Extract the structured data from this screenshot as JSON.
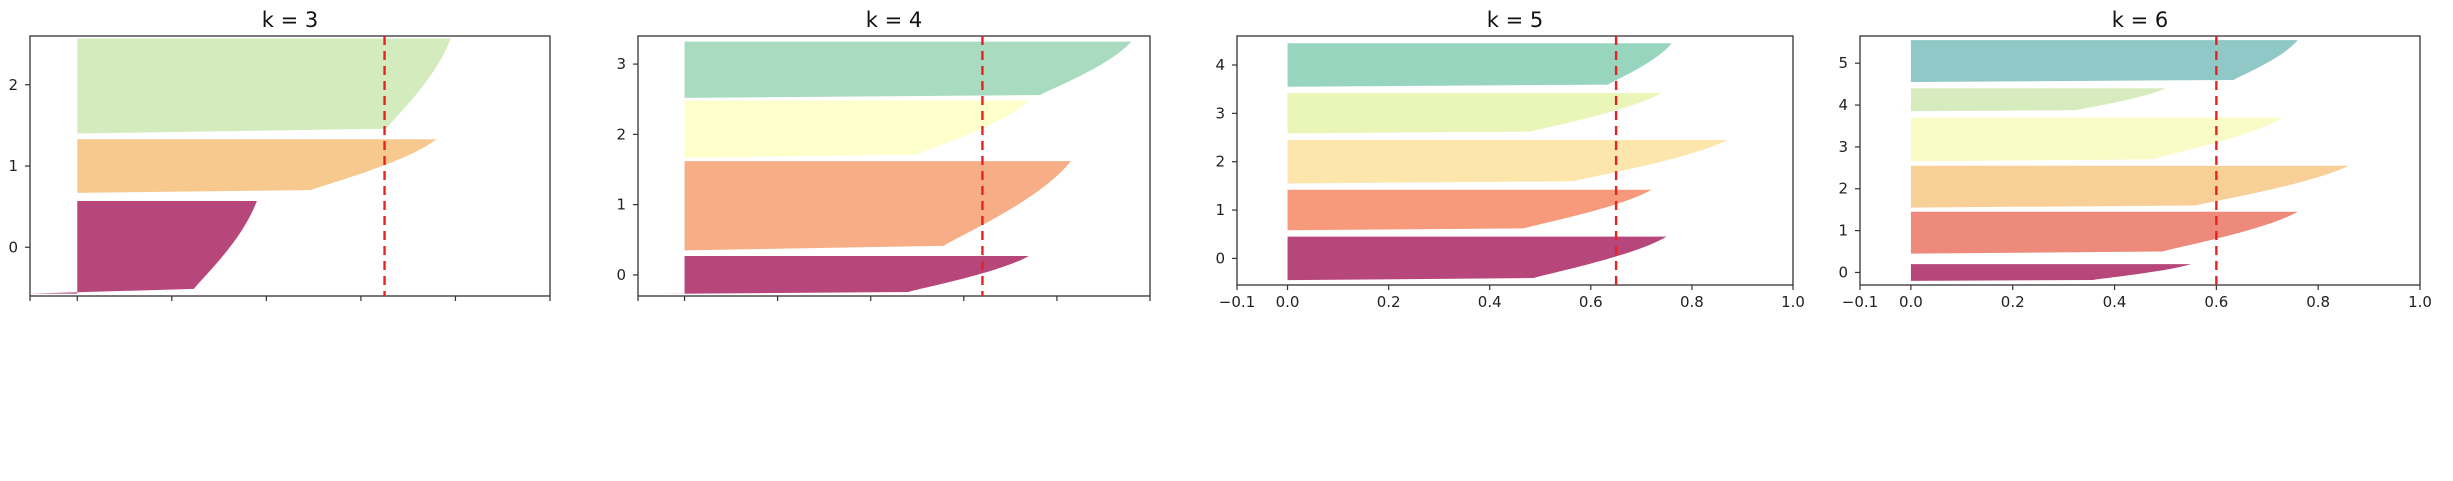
{
  "chart_data": [
    {
      "type": "silhouette",
      "title": "k = 3",
      "xlim": [
        -0.1,
        1.0
      ],
      "ylim": [
        -0.6,
        2.6
      ],
      "x_ticks_labeled": false,
      "yticks": [
        0,
        1,
        2
      ],
      "silhouette_average": 0.65,
      "clusters": [
        {
          "label": "0",
          "color": "#b7477a",
          "y_from": -0.57,
          "y_to": 0.57,
          "min_coef": -0.1,
          "max_coef": 0.38
        },
        {
          "label": "1",
          "color": "#f8c98e",
          "y_from": 0.67,
          "y_to": 1.33,
          "min_coef": 0.0,
          "max_coef": 0.76
        },
        {
          "label": "2",
          "color": "#d3ebbd",
          "y_from": 1.4,
          "y_to": 2.57,
          "min_coef": 0.4,
          "max_coef": 0.79
        }
      ]
    },
    {
      "type": "silhouette",
      "title": "k = 4",
      "xlim": [
        -0.1,
        1.0
      ],
      "ylim": [
        -0.3,
        3.4
      ],
      "x_ticks_labeled": false,
      "yticks": [
        0,
        1,
        2,
        3
      ],
      "silhouette_average": 0.64,
      "clusters": [
        {
          "label": "0",
          "color": "#b7477a",
          "y_from": -0.27,
          "y_to": 0.27,
          "min_coef": -0.05,
          "max_coef": 0.74
        },
        {
          "label": "1",
          "color": "#f7ae86",
          "y_from": 0.35,
          "y_to": 1.62,
          "min_coef": 0.05,
          "max_coef": 0.83
        },
        {
          "label": "2",
          "color": "#ffffcc",
          "y_from": 1.67,
          "y_to": 2.48,
          "min_coef": 0.05,
          "max_coef": 0.74
        },
        {
          "label": "3",
          "color": "#a8dbbf",
          "y_from": 2.52,
          "y_to": 3.32,
          "min_coef": 0.4,
          "max_coef": 0.96
        }
      ]
    },
    {
      "type": "silhouette",
      "title": "k = 5",
      "xlim": [
        -0.1,
        1.0
      ],
      "ylim": [
        -0.55,
        4.6
      ],
      "xticks": [
        -0.1,
        0.0,
        0.2,
        0.4,
        0.6,
        0.8,
        1.0
      ],
      "xtick_labels": [
        "−0.1",
        "0.0",
        "0.2",
        "0.4",
        "0.6",
        "0.8",
        "1.0"
      ],
      "yticks": [
        0,
        1,
        2,
        3,
        4
      ],
      "silhouette_average": 0.65,
      "clusters": [
        {
          "label": "0",
          "color": "#b7477a",
          "y_from": -0.45,
          "y_to": 0.45,
          "min_coef": 0.0,
          "max_coef": 0.75
        },
        {
          "label": "1",
          "color": "#f69a7b",
          "y_from": 0.58,
          "y_to": 1.42,
          "min_coef": -0.03,
          "max_coef": 0.72
        },
        {
          "label": "2",
          "color": "#fde6ac",
          "y_from": 1.55,
          "y_to": 2.45,
          "min_coef": 0.0,
          "max_coef": 0.87
        },
        {
          "label": "3",
          "color": "#eaf5b8",
          "y_from": 2.58,
          "y_to": 3.42,
          "min_coef": -0.05,
          "max_coef": 0.74
        },
        {
          "label": "4",
          "color": "#97d5bf",
          "y_from": 3.55,
          "y_to": 4.45,
          "min_coef": 0.4,
          "max_coef": 0.76
        }
      ]
    },
    {
      "type": "silhouette",
      "title": "k = 6",
      "xlim": [
        -0.1,
        1.0
      ],
      "ylim": [
        -0.3,
        5.65
      ],
      "xticks": [
        -0.1,
        0.0,
        0.2,
        0.4,
        0.6,
        0.8,
        1.0
      ],
      "xtick_labels": [
        "−0.1",
        "0.0",
        "0.2",
        "0.4",
        "0.6",
        "0.8",
        "1.0"
      ],
      "yticks": [
        0,
        1,
        2,
        3,
        4,
        5
      ],
      "silhouette_average": 0.6,
      "clusters": [
        {
          "label": "0",
          "color": "#b7477a",
          "y_from": -0.2,
          "y_to": 0.2,
          "min_coef": 0.0,
          "max_coef": 0.55
        },
        {
          "label": "1",
          "color": "#ed8a7c",
          "y_from": 0.45,
          "y_to": 1.45,
          "min_coef": 0.0,
          "max_coef": 0.76
        },
        {
          "label": "2",
          "color": "#f9cf98",
          "y_from": 1.55,
          "y_to": 2.55,
          "min_coef": 0.0,
          "max_coef": 0.86
        },
        {
          "label": "3",
          "color": "#fbfbc7",
          "y_from": 2.65,
          "y_to": 3.7,
          "min_coef": -0.05,
          "max_coef": 0.73
        },
        {
          "label": "4",
          "color": "#d7ecbe",
          "y_from": 3.85,
          "y_to": 4.4,
          "min_coef": -0.03,
          "max_coef": 0.5
        },
        {
          "label": "5",
          "color": "#8fc8c6",
          "y_from": 4.55,
          "y_to": 5.55,
          "min_coef": 0.4,
          "max_coef": 0.76
        }
      ]
    }
  ]
}
